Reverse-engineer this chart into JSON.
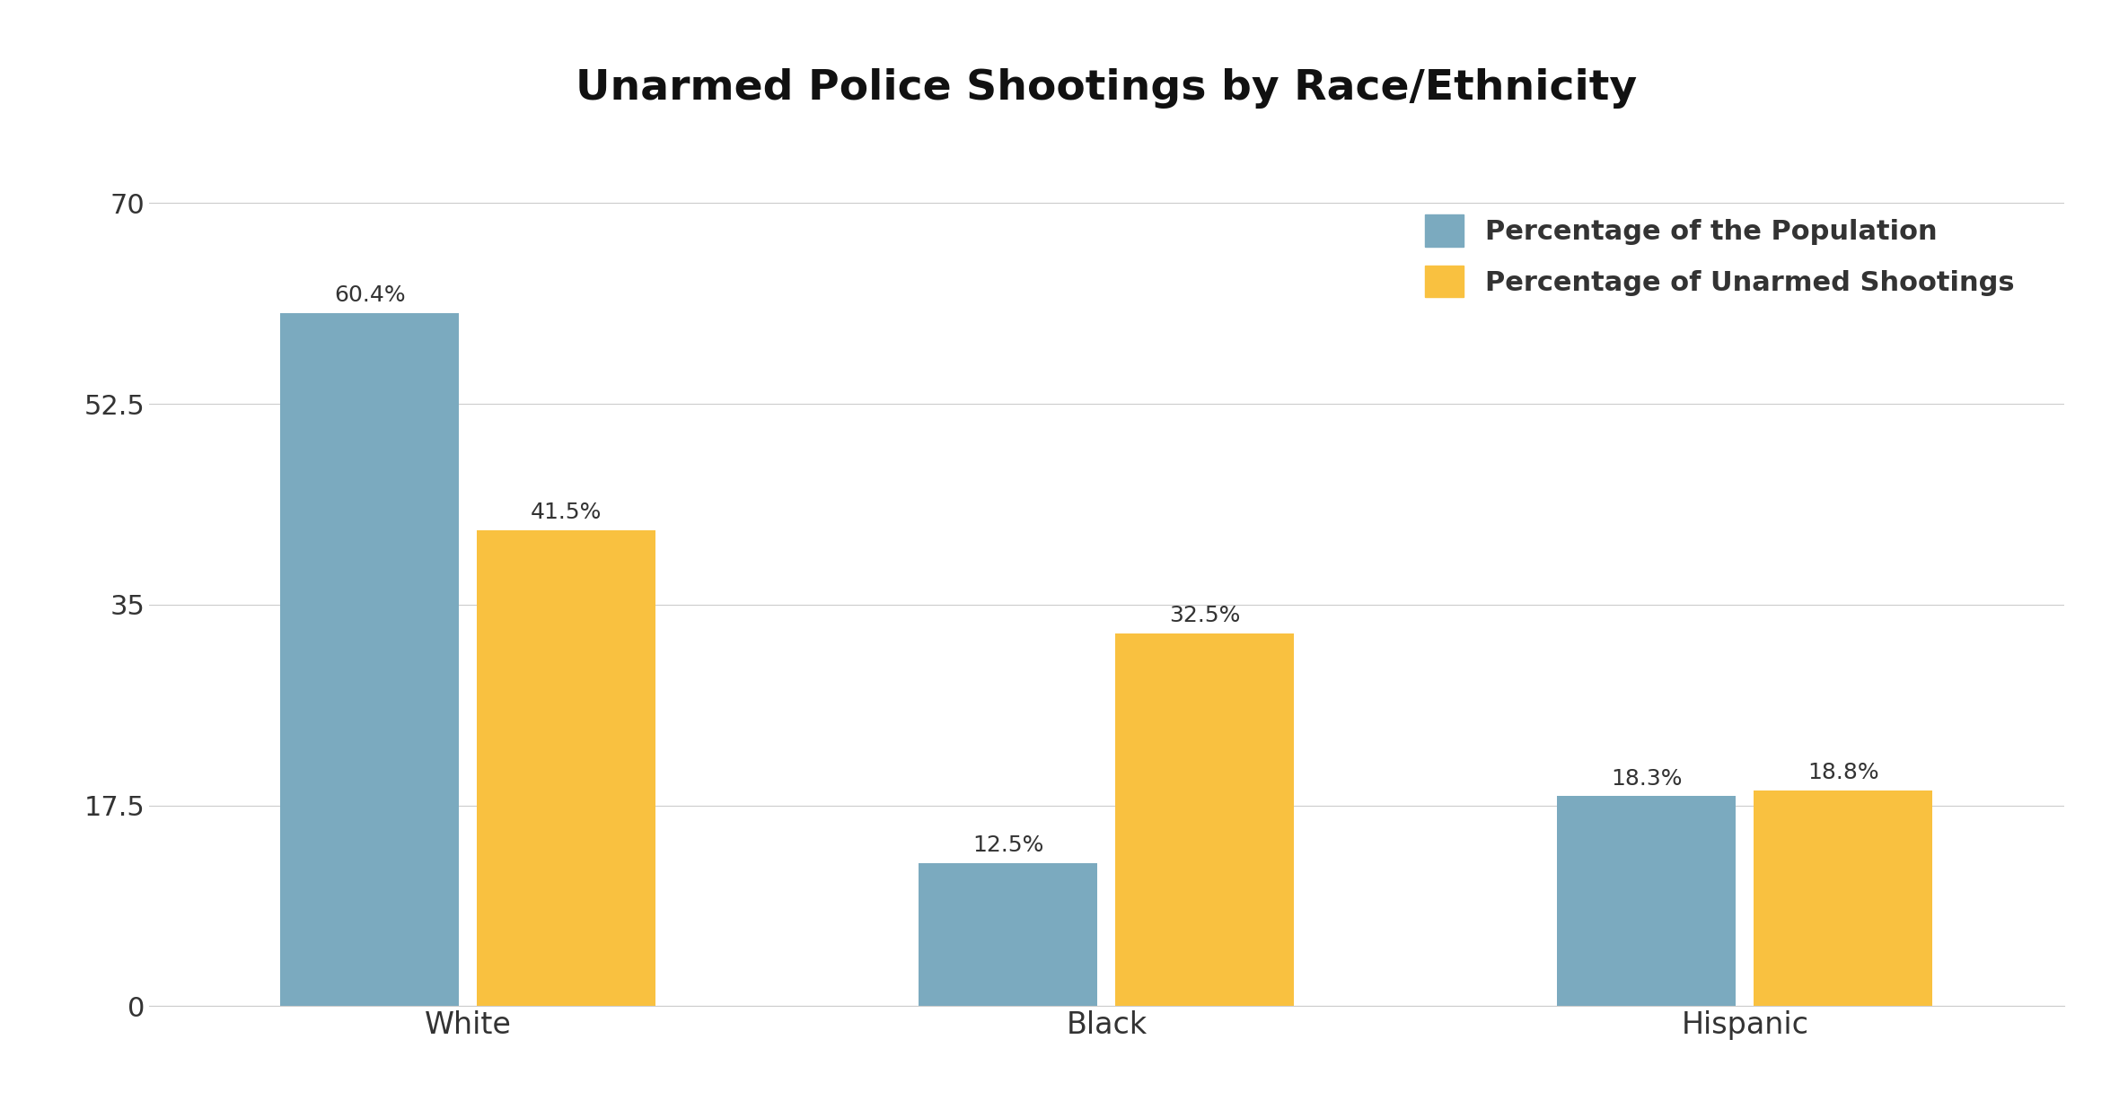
{
  "title": "Unarmed Police Shootings by Race/Ethnicity",
  "categories": [
    "White",
    "Black",
    "Hispanic"
  ],
  "population_pct": [
    60.4,
    12.5,
    18.3
  ],
  "shooting_pct": [
    41.5,
    32.5,
    18.8
  ],
  "bar_color_population": "#7BAABF",
  "bar_color_shooting": "#F9C140",
  "legend_labels": [
    "Percentage of the Population",
    "Percentage of Unarmed Shootings"
  ],
  "ytick_vals": [
    0,
    17.5,
    35,
    52.5,
    70
  ],
  "ytick_labels": [
    "0",
    "17.5",
    "35",
    "52.5",
    "70"
  ],
  "ylim": [
    0,
    76
  ],
  "title_fontsize": 34,
  "tick_fontsize": 22,
  "legend_fontsize": 22,
  "annotation_fontsize": 18,
  "background_color": "#FFFFFF",
  "bar_width": 0.28,
  "x_positions": [
    0.5,
    1.5,
    2.5
  ],
  "xlim": [
    0.0,
    3.0
  ]
}
